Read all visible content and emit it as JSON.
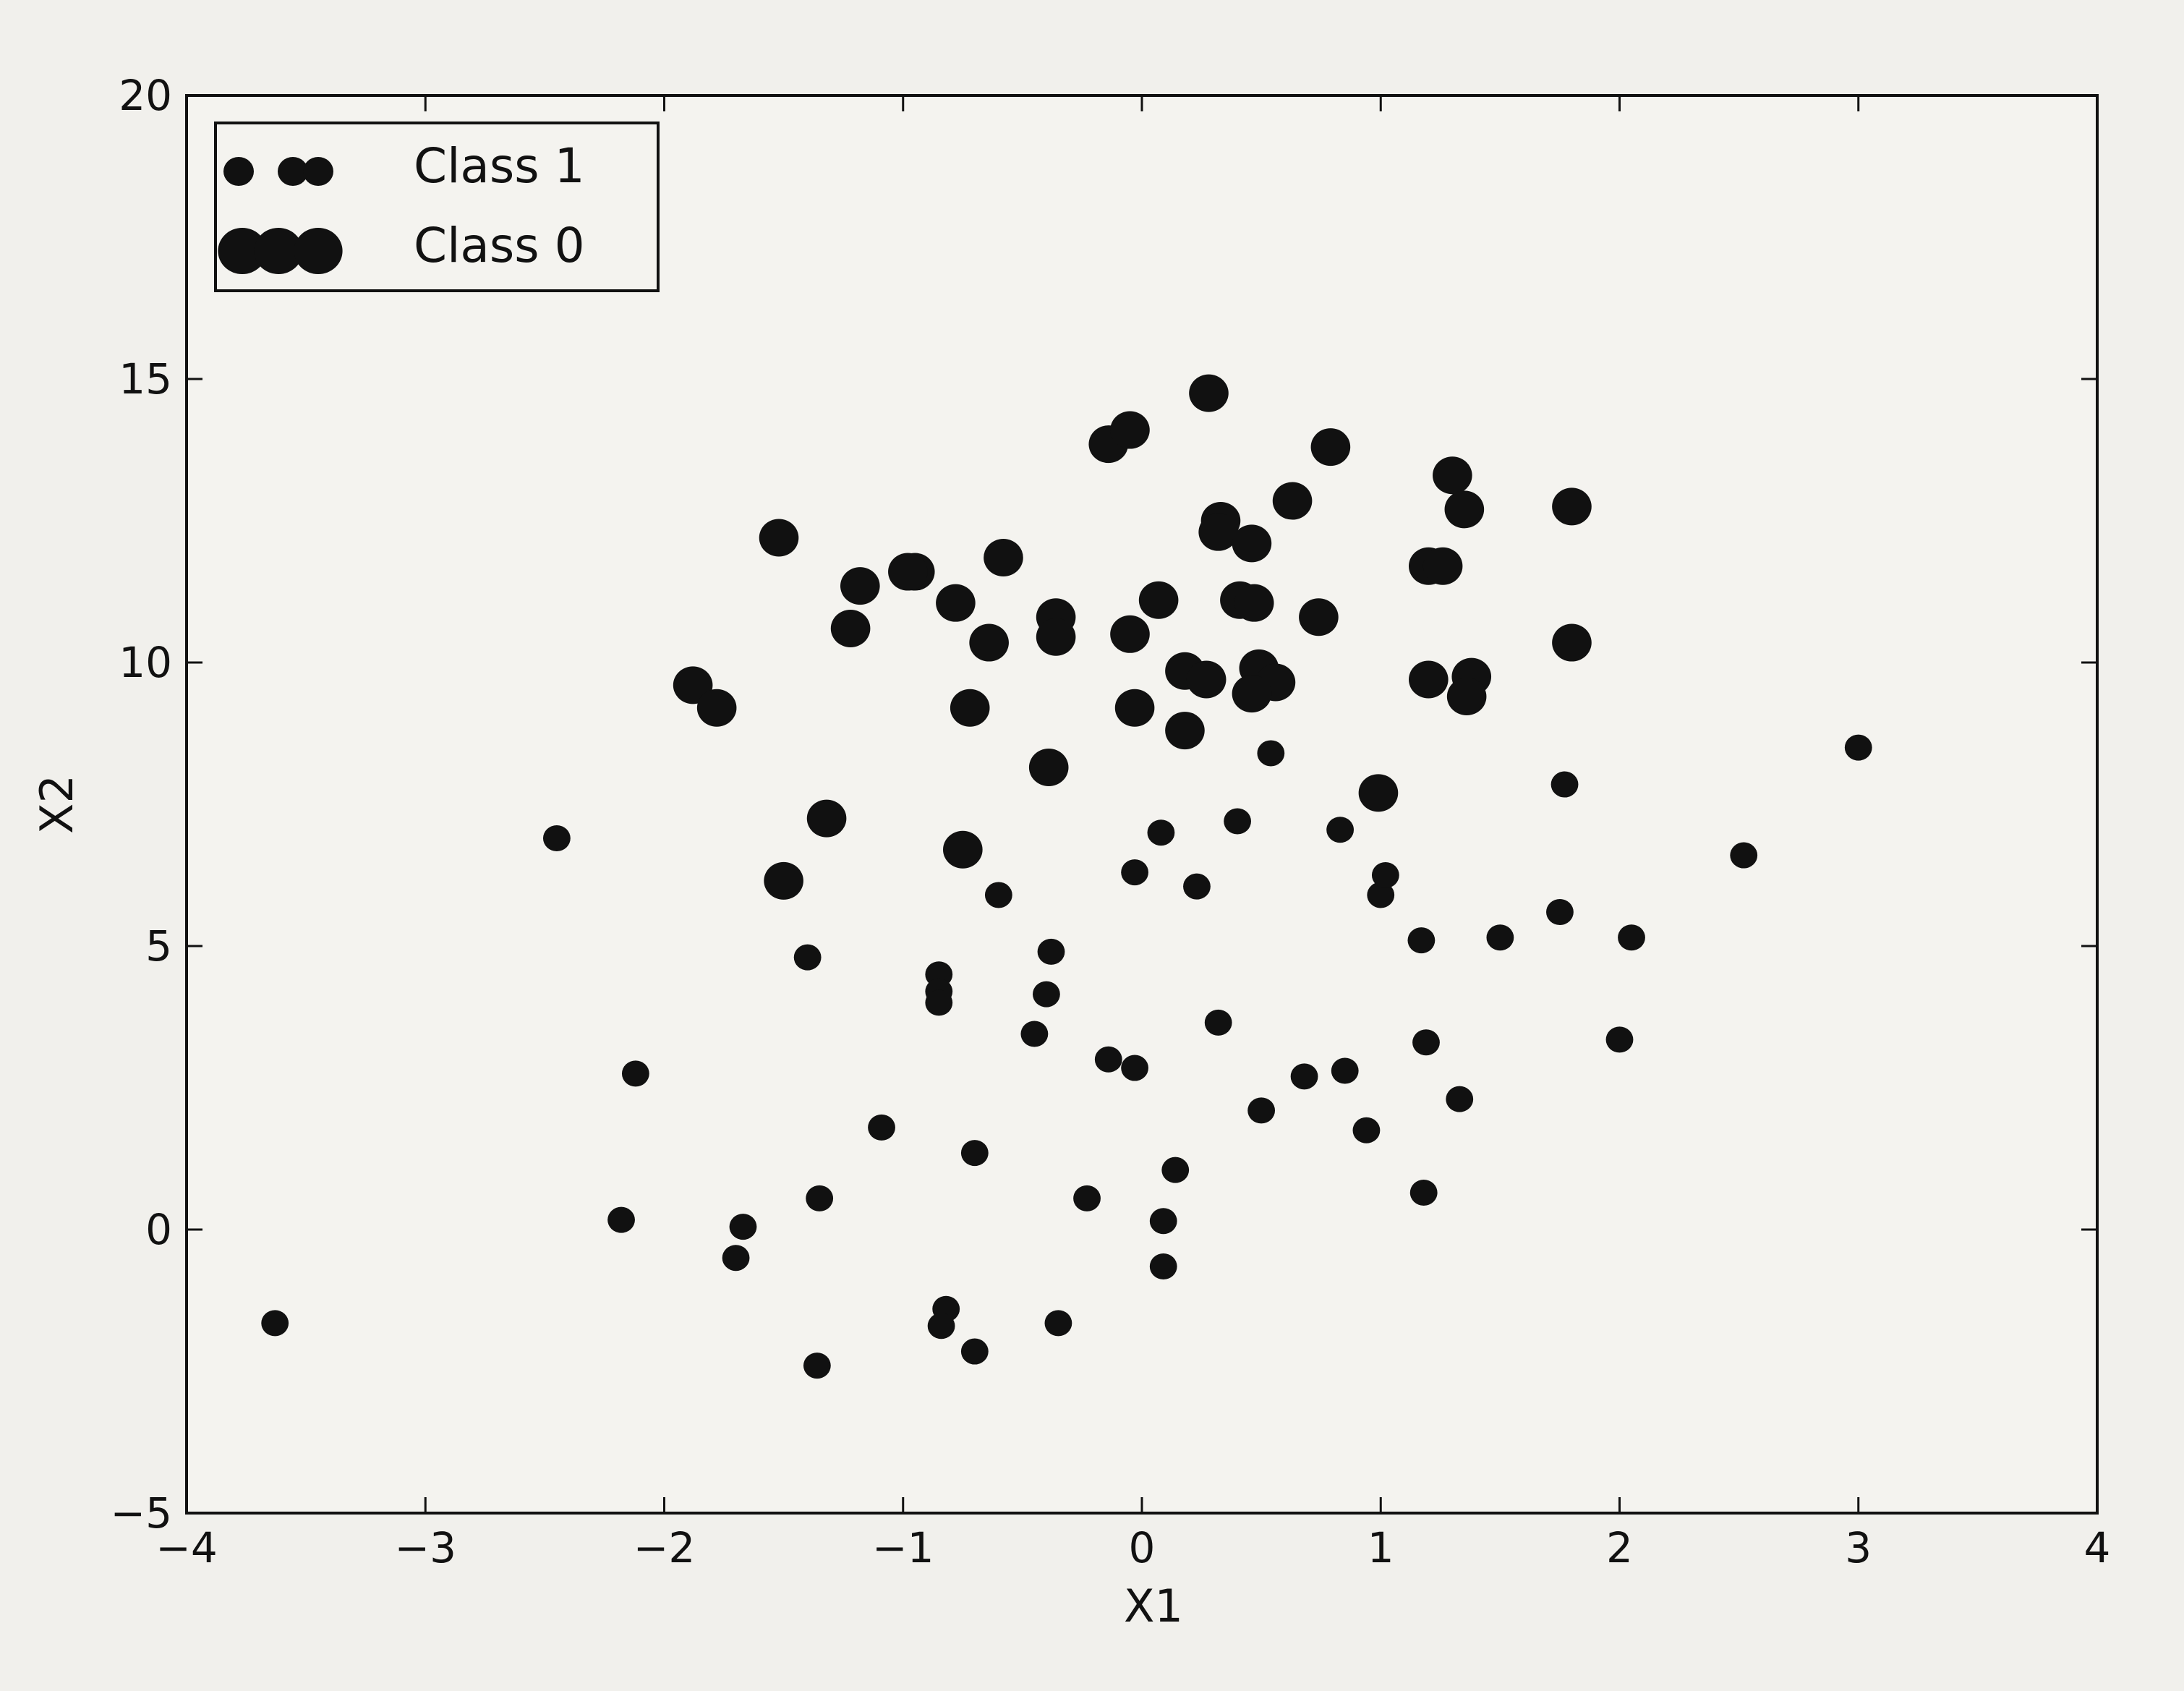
{
  "chart_data": {
    "type": "scatter",
    "title": "",
    "xlabel": "X1",
    "ylabel": "X2",
    "xlim": [
      -4,
      4
    ],
    "ylim": [
      -5,
      20
    ],
    "xticks": [
      -4,
      -3,
      -2,
      -1,
      0,
      1,
      2,
      3,
      4
    ],
    "yticks": [
      -5,
      0,
      5,
      10,
      15,
      20
    ],
    "xtick_labels": [
      "−4",
      "−3",
      "−2",
      "−1",
      "0",
      "1",
      "2",
      "3",
      "4"
    ],
    "ytick_labels": [
      "−5",
      "0",
      "5",
      "10",
      "15",
      "20"
    ],
    "grid": false,
    "legend_position": "top-left",
    "marker_color": "#111111",
    "series": [
      {
        "name": "Class 1",
        "marker": "small-circle",
        "x": [
          3.0,
          -2.45,
          -2.12,
          -3.63,
          -2.18,
          -1.7,
          -1.67,
          -1.4,
          -1.35,
          -1.36,
          -1.09,
          -0.85,
          -0.85,
          -0.85,
          -0.82,
          -0.84,
          -0.7,
          -0.7,
          -0.6,
          -0.45,
          -0.4,
          -0.38,
          -0.35,
          -0.23,
          -0.14,
          -0.03,
          -0.03,
          0.08,
          0.09,
          0.09,
          0.14,
          0.23,
          0.32,
          0.4,
          0.54,
          0.5,
          0.68,
          0.83,
          0.85,
          0.94,
          1.0,
          1.02,
          1.17,
          1.19,
          1.18,
          1.33,
          1.5,
          1.75,
          1.77,
          2.05,
          2.52,
          2.0
        ],
        "y": [
          8.5,
          6.9,
          2.75,
          -1.65,
          0.17,
          -0.5,
          0.05,
          4.8,
          0.55,
          -2.4,
          1.8,
          4.5,
          4.2,
          4.0,
          -1.4,
          -1.7,
          1.35,
          -2.15,
          5.9,
          3.45,
          4.15,
          4.9,
          -1.65,
          0.55,
          3.0,
          6.3,
          2.85,
          7.0,
          0.15,
          -0.65,
          1.05,
          6.05,
          3.65,
          7.2,
          8.4,
          2.1,
          2.7,
          7.05,
          2.8,
          1.75,
          5.9,
          6.25,
          5.1,
          3.3,
          0.65,
          2.3,
          5.15,
          5.6,
          7.85,
          5.15,
          6.6,
          3.35
        ]
      },
      {
        "name": "Class 0",
        "marker": "large-circle",
        "x": [
          0.28,
          -0.14,
          -0.05,
          0.79,
          1.3,
          1.35,
          0.63,
          1.8,
          0.33,
          0.32,
          0.46,
          -1.52,
          -0.95,
          -0.98,
          -0.58,
          -1.18,
          -1.22,
          -0.78,
          0.07,
          0.41,
          0.47,
          0.74,
          1.2,
          1.26,
          -0.36,
          -0.36,
          -0.64,
          -0.05,
          1.8,
          -1.88,
          -1.78,
          -0.72,
          -0.03,
          0.18,
          0.27,
          0.49,
          0.56,
          0.46,
          1.2,
          1.38,
          1.36,
          0.18,
          -0.39,
          0.99,
          -1.32,
          -1.5,
          -0.75
        ],
        "y": [
          14.75,
          13.85,
          14.1,
          13.8,
          13.3,
          12.7,
          12.85,
          12.75,
          12.5,
          12.3,
          12.1,
          12.2,
          11.6,
          11.6,
          11.85,
          11.35,
          10.6,
          11.05,
          11.1,
          11.1,
          11.05,
          10.8,
          11.7,
          11.7,
          10.8,
          10.45,
          10.35,
          10.5,
          10.35,
          9.6,
          9.2,
          9.2,
          9.2,
          9.85,
          9.7,
          9.9,
          9.65,
          9.45,
          9.7,
          9.75,
          9.4,
          8.8,
          8.15,
          7.7,
          7.25,
          6.15,
          6.7
        ]
      }
    ]
  }
}
